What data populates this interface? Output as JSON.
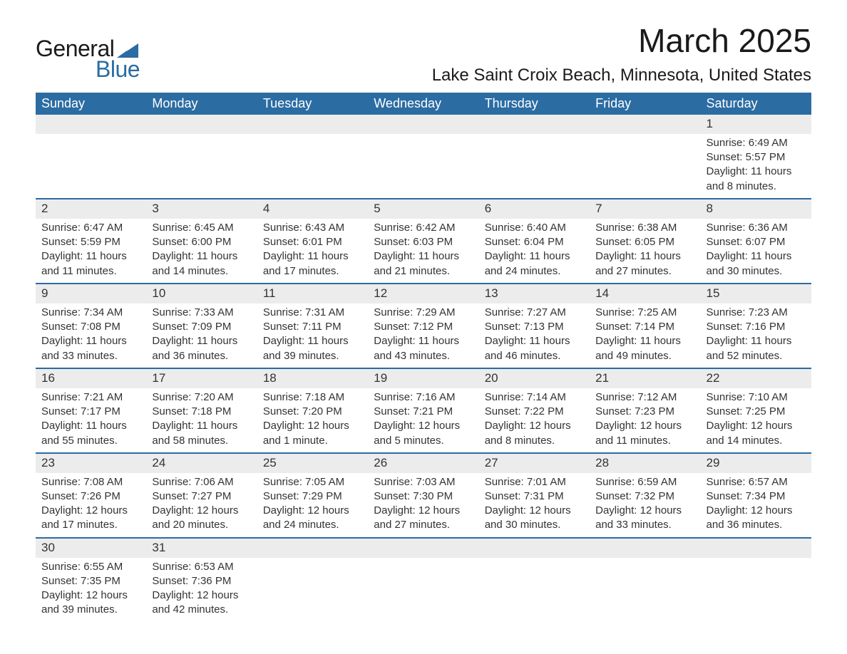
{
  "logo": {
    "text1": "General",
    "text2": "Blue",
    "tri_color": "#2b6ca3"
  },
  "title": "March 2025",
  "location": "Lake Saint Croix Beach, Minnesota, United States",
  "colors": {
    "header_bg": "#2b6ca3",
    "header_text": "#ffffff",
    "daynum_bg": "#ececec",
    "text": "#333333",
    "border": "#2b6ca3"
  },
  "weekdays": [
    "Sunday",
    "Monday",
    "Tuesday",
    "Wednesday",
    "Thursday",
    "Friday",
    "Saturday"
  ],
  "weeks": [
    [
      null,
      null,
      null,
      null,
      null,
      null,
      {
        "n": "1",
        "sr": "Sunrise: 6:49 AM",
        "ss": "Sunset: 5:57 PM",
        "dl": "Daylight: 11 hours and 8 minutes."
      }
    ],
    [
      {
        "n": "2",
        "sr": "Sunrise: 6:47 AM",
        "ss": "Sunset: 5:59 PM",
        "dl": "Daylight: 11 hours and 11 minutes."
      },
      {
        "n": "3",
        "sr": "Sunrise: 6:45 AM",
        "ss": "Sunset: 6:00 PM",
        "dl": "Daylight: 11 hours and 14 minutes."
      },
      {
        "n": "4",
        "sr": "Sunrise: 6:43 AM",
        "ss": "Sunset: 6:01 PM",
        "dl": "Daylight: 11 hours and 17 minutes."
      },
      {
        "n": "5",
        "sr": "Sunrise: 6:42 AM",
        "ss": "Sunset: 6:03 PM",
        "dl": "Daylight: 11 hours and 21 minutes."
      },
      {
        "n": "6",
        "sr": "Sunrise: 6:40 AM",
        "ss": "Sunset: 6:04 PM",
        "dl": "Daylight: 11 hours and 24 minutes."
      },
      {
        "n": "7",
        "sr": "Sunrise: 6:38 AM",
        "ss": "Sunset: 6:05 PM",
        "dl": "Daylight: 11 hours and 27 minutes."
      },
      {
        "n": "8",
        "sr": "Sunrise: 6:36 AM",
        "ss": "Sunset: 6:07 PM",
        "dl": "Daylight: 11 hours and 30 minutes."
      }
    ],
    [
      {
        "n": "9",
        "sr": "Sunrise: 7:34 AM",
        "ss": "Sunset: 7:08 PM",
        "dl": "Daylight: 11 hours and 33 minutes."
      },
      {
        "n": "10",
        "sr": "Sunrise: 7:33 AM",
        "ss": "Sunset: 7:09 PM",
        "dl": "Daylight: 11 hours and 36 minutes."
      },
      {
        "n": "11",
        "sr": "Sunrise: 7:31 AM",
        "ss": "Sunset: 7:11 PM",
        "dl": "Daylight: 11 hours and 39 minutes."
      },
      {
        "n": "12",
        "sr": "Sunrise: 7:29 AM",
        "ss": "Sunset: 7:12 PM",
        "dl": "Daylight: 11 hours and 43 minutes."
      },
      {
        "n": "13",
        "sr": "Sunrise: 7:27 AM",
        "ss": "Sunset: 7:13 PM",
        "dl": "Daylight: 11 hours and 46 minutes."
      },
      {
        "n": "14",
        "sr": "Sunrise: 7:25 AM",
        "ss": "Sunset: 7:14 PM",
        "dl": "Daylight: 11 hours and 49 minutes."
      },
      {
        "n": "15",
        "sr": "Sunrise: 7:23 AM",
        "ss": "Sunset: 7:16 PM",
        "dl": "Daylight: 11 hours and 52 minutes."
      }
    ],
    [
      {
        "n": "16",
        "sr": "Sunrise: 7:21 AM",
        "ss": "Sunset: 7:17 PM",
        "dl": "Daylight: 11 hours and 55 minutes."
      },
      {
        "n": "17",
        "sr": "Sunrise: 7:20 AM",
        "ss": "Sunset: 7:18 PM",
        "dl": "Daylight: 11 hours and 58 minutes."
      },
      {
        "n": "18",
        "sr": "Sunrise: 7:18 AM",
        "ss": "Sunset: 7:20 PM",
        "dl": "Daylight: 12 hours and 1 minute."
      },
      {
        "n": "19",
        "sr": "Sunrise: 7:16 AM",
        "ss": "Sunset: 7:21 PM",
        "dl": "Daylight: 12 hours and 5 minutes."
      },
      {
        "n": "20",
        "sr": "Sunrise: 7:14 AM",
        "ss": "Sunset: 7:22 PM",
        "dl": "Daylight: 12 hours and 8 minutes."
      },
      {
        "n": "21",
        "sr": "Sunrise: 7:12 AM",
        "ss": "Sunset: 7:23 PM",
        "dl": "Daylight: 12 hours and 11 minutes."
      },
      {
        "n": "22",
        "sr": "Sunrise: 7:10 AM",
        "ss": "Sunset: 7:25 PM",
        "dl": "Daylight: 12 hours and 14 minutes."
      }
    ],
    [
      {
        "n": "23",
        "sr": "Sunrise: 7:08 AM",
        "ss": "Sunset: 7:26 PM",
        "dl": "Daylight: 12 hours and 17 minutes."
      },
      {
        "n": "24",
        "sr": "Sunrise: 7:06 AM",
        "ss": "Sunset: 7:27 PM",
        "dl": "Daylight: 12 hours and 20 minutes."
      },
      {
        "n": "25",
        "sr": "Sunrise: 7:05 AM",
        "ss": "Sunset: 7:29 PM",
        "dl": "Daylight: 12 hours and 24 minutes."
      },
      {
        "n": "26",
        "sr": "Sunrise: 7:03 AM",
        "ss": "Sunset: 7:30 PM",
        "dl": "Daylight: 12 hours and 27 minutes."
      },
      {
        "n": "27",
        "sr": "Sunrise: 7:01 AM",
        "ss": "Sunset: 7:31 PM",
        "dl": "Daylight: 12 hours and 30 minutes."
      },
      {
        "n": "28",
        "sr": "Sunrise: 6:59 AM",
        "ss": "Sunset: 7:32 PM",
        "dl": "Daylight: 12 hours and 33 minutes."
      },
      {
        "n": "29",
        "sr": "Sunrise: 6:57 AM",
        "ss": "Sunset: 7:34 PM",
        "dl": "Daylight: 12 hours and 36 minutes."
      }
    ],
    [
      {
        "n": "30",
        "sr": "Sunrise: 6:55 AM",
        "ss": "Sunset: 7:35 PM",
        "dl": "Daylight: 12 hours and 39 minutes."
      },
      {
        "n": "31",
        "sr": "Sunrise: 6:53 AM",
        "ss": "Sunset: 7:36 PM",
        "dl": "Daylight: 12 hours and 42 minutes."
      },
      null,
      null,
      null,
      null,
      null
    ]
  ]
}
